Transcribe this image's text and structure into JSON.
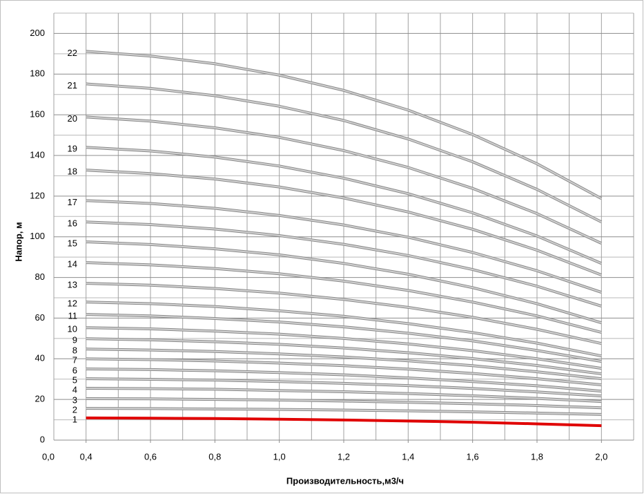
{
  "chart_data": {
    "type": "line",
    "y_label": "Напор, м",
    "x_label": "Производительность,м3/ч",
    "x_origin_label": "0,0",
    "x": [
      0.4,
      0.6,
      0.8,
      1.0,
      1.2,
      1.4,
      1.6,
      1.8,
      2.0
    ],
    "xlim": [
      0.3,
      2.1
    ],
    "xticks": [
      {
        "value": 0.4,
        "label": "0,4"
      },
      {
        "value": 0.6,
        "label": "0,6"
      },
      {
        "value": 0.8,
        "label": "0,8"
      },
      {
        "value": 1.0,
        "label": "1,0"
      },
      {
        "value": 1.2,
        "label": "1,2"
      },
      {
        "value": 1.4,
        "label": "1,4"
      },
      {
        "value": 1.6,
        "label": "1,6"
      },
      {
        "value": 1.8,
        "label": "1,8"
      },
      {
        "value": 2.0,
        "label": "2,0"
      }
    ],
    "x_grid": [
      0.3,
      0.4,
      0.5,
      0.6,
      0.7,
      0.8,
      0.9,
      1.0,
      1.1,
      1.2,
      1.3,
      1.4,
      1.5,
      1.6,
      1.7,
      1.8,
      1.9,
      2.0,
      2.1
    ],
    "ylim": [
      0,
      210
    ],
    "yticks": [
      0,
      20,
      40,
      60,
      80,
      100,
      120,
      140,
      160,
      180,
      200
    ],
    "y_minor_grid": [
      10,
      30,
      50,
      70,
      90,
      110,
      130,
      150,
      170,
      190,
      210
    ],
    "grid": true,
    "series": [
      {
        "name": "1",
        "color": "#e00000",
        "values": [
          10.9,
          10.8,
          10.6,
          10.3,
          9.9,
          9.4,
          8.8,
          8.0,
          7.1
        ]
      },
      {
        "name": "2",
        "color": "#d0d0d0",
        "values": [
          15.6,
          15.5,
          15.3,
          15.1,
          14.8,
          14.4,
          13.9,
          13.3,
          12.6
        ]
      },
      {
        "name": "3",
        "color": "#d0d0d0",
        "values": [
          20.4,
          20.3,
          20.0,
          19.7,
          19.2,
          18.6,
          17.9,
          17.0,
          15.9
        ]
      },
      {
        "name": "4",
        "color": "#d0d0d0",
        "values": [
          25.5,
          25.3,
          25.0,
          24.4,
          23.8,
          22.9,
          21.8,
          20.5,
          19.0
        ]
      },
      {
        "name": "5",
        "color": "#d0d0d0",
        "values": [
          30.2,
          29.9,
          29.5,
          28.8,
          27.9,
          26.8,
          25.4,
          23.7,
          21.7
        ]
      },
      {
        "name": "6",
        "color": "#d0d0d0",
        "values": [
          35,
          34.7,
          34.1,
          33.2,
          32.1,
          30.6,
          28.8,
          26.7,
          24.1
        ]
      },
      {
        "name": "7",
        "color": "#d0d0d0",
        "values": [
          40,
          39.6,
          38.9,
          37.9,
          36.6,
          34.9,
          32.8,
          30.2,
          27.2
        ]
      },
      {
        "name": "8",
        "color": "#d0d0d0",
        "values": [
          44.8,
          44.3,
          43.6,
          42.4,
          40.9,
          39.0,
          36.6,
          33.6,
          30.2
        ]
      },
      {
        "name": "9",
        "color": "#d0d0d0",
        "values": [
          49.9,
          49.3,
          48.4,
          47.1,
          45.3,
          43.0,
          40.1,
          36.7,
          32.6
        ]
      },
      {
        "name": "10",
        "color": "#d0d0d0",
        "values": [
          55.3,
          54.7,
          53.6,
          52.1,
          50.0,
          47.3,
          44.0,
          40.0,
          35.3
        ]
      },
      {
        "name": "11",
        "color": "#d0d0d0",
        "values": [
          61.8,
          61.1,
          59.8,
          58.1,
          55.7,
          52.6,
          48.8,
          44.1,
          38.7
        ]
      },
      {
        "name": "12",
        "color": "#d0d0d0",
        "values": [
          67.9,
          67.1,
          65.7,
          63.6,
          60.9,
          57.3,
          52.9,
          47.7,
          41.4
        ]
      },
      {
        "name": "13",
        "color": "#d0d0d0",
        "values": [
          77.1,
          76.2,
          74.6,
          72.3,
          69.2,
          65.3,
          60.4,
          54.5,
          47.5
        ]
      },
      {
        "name": "14",
        "color": "#d0d0d0",
        "values": [
          87.3,
          86.2,
          84.4,
          81.8,
          78.2,
          73.6,
          67.9,
          61.1,
          53.0
        ]
      },
      {
        "name": "15",
        "color": "#d0d0d0",
        "values": [
          97.5,
          96.2,
          94.1,
          91.1,
          86.9,
          81.6,
          75.0,
          67.1,
          57.7
        ]
      },
      {
        "name": "16",
        "color": "#d0d0d0",
        "values": [
          107.3,
          106.0,
          103.8,
          100.6,
          96.3,
          90.8,
          83.9,
          75.7,
          65.9
        ]
      },
      {
        "name": "17",
        "color": "#d0d0d0",
        "values": [
          117.8,
          116.4,
          114.0,
          110.5,
          105.8,
          99.8,
          92.3,
          83.3,
          72.7
        ]
      },
      {
        "name": "18",
        "color": "#d0d0d0",
        "values": [
          132.8,
          131.1,
          128.4,
          124.5,
          119.1,
          112.2,
          103.7,
          93.4,
          81.2
        ]
      },
      {
        "name": "19",
        "color": "#d0d0d0",
        "values": [
          144,
          142.2,
          139.2,
          134.8,
          128.8,
          121.2,
          111.8,
          100.4,
          86.9
        ]
      },
      {
        "name": "20",
        "color": "#d0d0d0",
        "values": [
          158.9,
          156.9,
          153.6,
          148.9,
          142.4,
          134.1,
          123.8,
          111.4,
          96.8
        ]
      },
      {
        "name": "21",
        "color": "#d0d0d0",
        "values": [
          175.2,
          173.0,
          169.4,
          164.2,
          157.2,
          148.1,
          136.9,
          123.3,
          107.3
        ]
      },
      {
        "name": "22",
        "color": "#d0d0d0",
        "values": [
          191.2,
          188.9,
          185.1,
          179.5,
          172.0,
          162.3,
          150.3,
          135.9,
          118.8
        ]
      }
    ]
  }
}
